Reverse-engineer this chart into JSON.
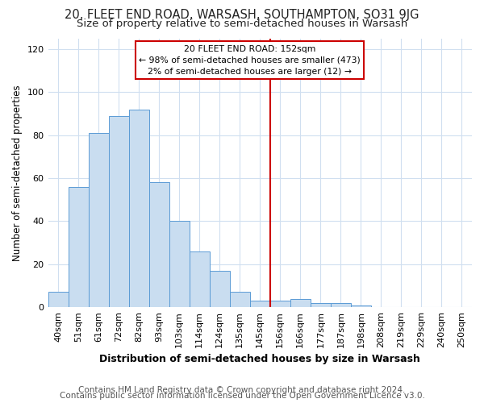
{
  "title": "20, FLEET END ROAD, WARSASH, SOUTHAMPTON, SO31 9JG",
  "subtitle": "Size of property relative to semi-detached houses in Warsash",
  "xlabel": "Distribution of semi-detached houses by size in Warsash",
  "ylabel": "Number of semi-detached properties",
  "categories": [
    "40sqm",
    "51sqm",
    "61sqm",
    "72sqm",
    "82sqm",
    "93sqm",
    "103sqm",
    "114sqm",
    "124sqm",
    "135sqm",
    "145sqm",
    "156sqm",
    "166sqm",
    "177sqm",
    "187sqm",
    "198sqm",
    "208sqm",
    "219sqm",
    "229sqm",
    "240sqm",
    "250sqm"
  ],
  "values": [
    7,
    56,
    81,
    89,
    92,
    58,
    40,
    26,
    17,
    7,
    3,
    3,
    4,
    2,
    2,
    1,
    0,
    0,
    0,
    0,
    0
  ],
  "bar_color": "#c9ddf0",
  "bar_edge_color": "#5b9bd5",
  "vline_index": 11,
  "vline_color": "#cc0000",
  "annotation_title": "20 FLEET END ROAD: 152sqm",
  "annotation_line1": "← 98% of semi-detached houses are smaller (473)",
  "annotation_line2": "2% of semi-detached houses are larger (12) →",
  "annotation_box_edgecolor": "#cc0000",
  "ylim": [
    0,
    125
  ],
  "yticks": [
    0,
    20,
    40,
    60,
    80,
    100,
    120
  ],
  "footer_line1": "Contains HM Land Registry data © Crown copyright and database right 2024.",
  "footer_line2": "Contains public sector information licensed under the Open Government Licence v3.0.",
  "background_color": "#ffffff",
  "plot_background": "#ffffff",
  "grid_color": "#d0dff0",
  "title_fontsize": 10.5,
  "subtitle_fontsize": 9.5,
  "footer_fontsize": 7.5,
  "tick_fontsize": 8,
  "ylabel_fontsize": 8.5,
  "xlabel_fontsize": 9
}
